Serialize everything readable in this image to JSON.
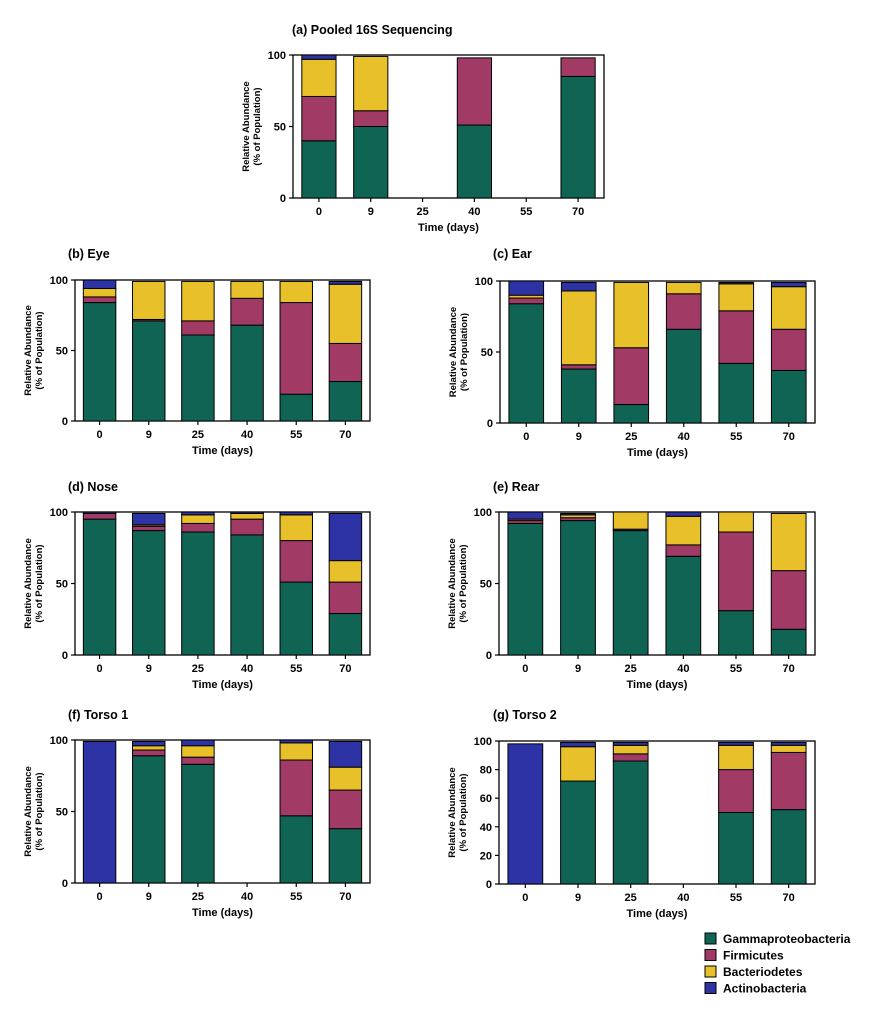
{
  "colors": {
    "Gammaproteobacteria": "#0f6454",
    "Firmicutes": "#a23a66",
    "Bacteriodetes": "#e8c12a",
    "Actinobacteria": "#2d33a4",
    "gap": "#ffffff"
  },
  "legend": {
    "items": [
      "Gammaproteobacteria",
      "Firmicutes",
      "Bacteriodetes",
      "Actinobacteria"
    ]
  },
  "chart_data": [
    {
      "id": "a",
      "type": "bar",
      "stacked": true,
      "title": "(a) Pooled 16S Sequencing",
      "xlabel": "Time (days)",
      "ylabel": [
        "Relative Abundance",
        "(% of Population)"
      ],
      "categories": [
        "0",
        "9",
        "25",
        "40",
        "55",
        "70"
      ],
      "ylim": [
        0,
        100
      ],
      "yticks": [
        0,
        50,
        100
      ],
      "series": [
        {
          "name": "Gammaproteobacteria",
          "values": [
            40,
            50,
            null,
            51,
            null,
            85
          ]
        },
        {
          "name": "Firmicutes",
          "values": [
            31,
            11,
            null,
            47,
            null,
            13
          ]
        },
        {
          "name": "Bacteriodetes",
          "values": [
            26,
            38,
            null,
            0,
            null,
            0
          ]
        },
        {
          "name": "Actinobacteria",
          "values": [
            3,
            0,
            null,
            0,
            null,
            0
          ]
        }
      ]
    },
    {
      "id": "b",
      "type": "bar",
      "stacked": true,
      "title": "(b) Eye",
      "xlabel": "Time (days)",
      "ylabel": [
        "Relative Abundance",
        "(% of Population)"
      ],
      "categories": [
        "0",
        "9",
        "25",
        "40",
        "55",
        "70"
      ],
      "ylim": [
        0,
        100
      ],
      "yticks": [
        0,
        50,
        100
      ],
      "series": [
        {
          "name": "Gammaproteobacteria",
          "values": [
            84,
            71,
            61,
            68,
            19,
            28
          ]
        },
        {
          "name": "Firmicutes",
          "values": [
            4,
            1,
            10,
            19,
            65,
            27
          ]
        },
        {
          "name": "Bacteriodetes",
          "values": [
            6,
            27,
            28,
            12,
            15,
            42
          ]
        },
        {
          "name": "Actinobacteria",
          "values": [
            6,
            0,
            0,
            0,
            0,
            2
          ]
        }
      ]
    },
    {
      "id": "c",
      "type": "bar",
      "stacked": true,
      "title": "(c) Ear",
      "xlabel": "Time (days)",
      "ylabel": [
        "Relative Abundance",
        "(% of Population)"
      ],
      "categories": [
        "0",
        "9",
        "25",
        "40",
        "55",
        "70"
      ],
      "ylim": [
        0,
        100
      ],
      "yticks": [
        0,
        50,
        100
      ],
      "series": [
        {
          "name": "Gammaproteobacteria",
          "values": [
            84,
            38,
            13,
            66,
            42,
            37
          ]
        },
        {
          "name": "Firmicutes",
          "values": [
            4,
            3,
            40,
            25,
            37,
            29
          ]
        },
        {
          "name": "Bacteriodetes",
          "values": [
            2,
            52,
            46,
            8,
            19,
            30
          ]
        },
        {
          "name": "Actinobacteria",
          "values": [
            10,
            6,
            0,
            0,
            1,
            3
          ]
        }
      ]
    },
    {
      "id": "d",
      "type": "bar",
      "stacked": true,
      "title": "(d) Nose",
      "xlabel": "Time (days)",
      "ylabel": [
        "Relative Abundance",
        "(% of Population)"
      ],
      "categories": [
        "0",
        "9",
        "25",
        "40",
        "55",
        "70"
      ],
      "ylim": [
        0,
        100
      ],
      "yticks": [
        0,
        50,
        100
      ],
      "series": [
        {
          "name": "Gammaproteobacteria",
          "values": [
            95,
            87,
            86,
            84,
            51,
            29
          ]
        },
        {
          "name": "Firmicutes",
          "values": [
            4,
            3,
            6,
            11,
            29,
            22
          ]
        },
        {
          "name": "Bacteriodetes",
          "values": [
            0,
            1,
            6,
            4,
            18,
            15
          ]
        },
        {
          "name": "Actinobacteria",
          "values": [
            1,
            8,
            2,
            1,
            2,
            33
          ]
        }
      ]
    },
    {
      "id": "e",
      "type": "bar",
      "stacked": true,
      "title": "(e) Rear",
      "xlabel": "Time (days)",
      "ylabel": [
        "Relative Abundance",
        "(% of Population)"
      ],
      "categories": [
        "0",
        "9",
        "25",
        "40",
        "55",
        "70"
      ],
      "ylim": [
        0,
        100
      ],
      "yticks": [
        0,
        50,
        100
      ],
      "series": [
        {
          "name": "Gammaproteobacteria",
          "values": [
            92,
            94,
            87,
            69,
            31,
            18
          ]
        },
        {
          "name": "Firmicutes",
          "values": [
            2,
            2,
            1,
            8,
            55,
            41
          ]
        },
        {
          "name": "Bacteriodetes",
          "values": [
            1,
            2,
            12,
            20,
            14,
            40
          ]
        },
        {
          "name": "Actinobacteria",
          "values": [
            5,
            1,
            0,
            3,
            0,
            0
          ]
        }
      ]
    },
    {
      "id": "f",
      "type": "bar",
      "stacked": true,
      "title": "(f) Torso 1",
      "xlabel": "Time (days)",
      "ylabel": [
        "Relative Abundance",
        "(% of Population)"
      ],
      "categories": [
        "0",
        "9",
        "25",
        "40",
        "55",
        "70"
      ],
      "ylim": [
        0,
        100
      ],
      "yticks": [
        0,
        50,
        100
      ],
      "series": [
        {
          "name": "Gammaproteobacteria",
          "values": [
            0,
            89,
            83,
            null,
            47,
            38
          ]
        },
        {
          "name": "Firmicutes",
          "values": [
            0,
            4,
            5,
            null,
            39,
            27
          ]
        },
        {
          "name": "Bacteriodetes",
          "values": [
            0,
            3,
            8,
            null,
            12,
            16
          ]
        },
        {
          "name": "Actinobacteria",
          "values": [
            99,
            3,
            4,
            null,
            2,
            18
          ]
        }
      ]
    },
    {
      "id": "g",
      "type": "bar",
      "stacked": true,
      "title": "(g) Torso 2",
      "xlabel": "Time (days)",
      "ylabel": [
        "Relative Abundance",
        "(% of Population)"
      ],
      "categories": [
        "0",
        "9",
        "25",
        "40",
        "55",
        "70"
      ],
      "ylim": [
        0,
        100
      ],
      "yticks": [
        0,
        20,
        40,
        60,
        80,
        100
      ],
      "series": [
        {
          "name": "Gammaproteobacteria",
          "values": [
            0,
            72,
            86,
            null,
            50,
            52
          ]
        },
        {
          "name": "Firmicutes",
          "values": [
            0,
            0,
            5,
            null,
            30,
            40
          ]
        },
        {
          "name": "Bacteriodetes",
          "values": [
            0,
            24,
            6,
            null,
            17,
            5
          ]
        },
        {
          "name": "Actinobacteria",
          "values": [
            98,
            3,
            2,
            null,
            2,
            2
          ]
        }
      ]
    }
  ]
}
